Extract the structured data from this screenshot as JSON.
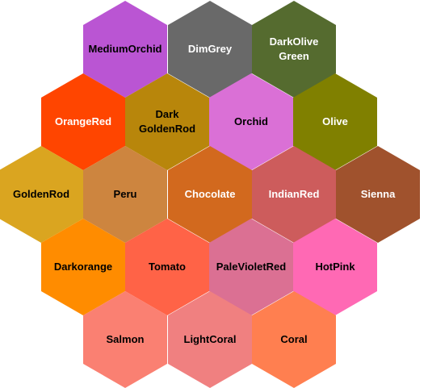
{
  "hexagons": [
    {
      "name": "MediumOrchid",
      "label": "MediumOrchid",
      "color": "#BA55D3",
      "text_color": "#000000"
    },
    {
      "name": "DimGrey",
      "label": "DimGrey",
      "color": "#696969",
      "text_color": "#FFFFFF"
    },
    {
      "name": "DarkOliveGreen",
      "label": "DarkOlive\nGreen",
      "color": "#556B2F",
      "text_color": "#FFFFFF"
    },
    {
      "name": "OrangeRed",
      "label": "OrangeRed",
      "color": "#FF4500",
      "text_color": "#FFFFFF"
    },
    {
      "name": "DarkGoldenRod",
      "label": "Dark\nGoldenRod",
      "color": "#B8860B",
      "text_color": "#000000"
    },
    {
      "name": "Orchid",
      "label": "Orchid",
      "color": "#DA70D6",
      "text_color": "#000000"
    },
    {
      "name": "Olive",
      "label": "Olive",
      "color": "#808000",
      "text_color": "#FFFFFF"
    },
    {
      "name": "GoldenRod",
      "label": "GoldenRod",
      "color": "#DAA520",
      "text_color": "#000000"
    },
    {
      "name": "Peru",
      "label": "Peru",
      "color": "#CD853F",
      "text_color": "#000000"
    },
    {
      "name": "Chocolate",
      "label": "Chocolate",
      "color": "#D2691E",
      "text_color": "#FFFFFF"
    },
    {
      "name": "IndianRed",
      "label": "IndianRed",
      "color": "#CD5C5C",
      "text_color": "#FFFFFF"
    },
    {
      "name": "Sienna",
      "label": "Sienna",
      "color": "#A0522D",
      "text_color": "#FFFFFF"
    },
    {
      "name": "Darkorange",
      "label": "Darkorange",
      "color": "#FF8C00",
      "text_color": "#000000"
    },
    {
      "name": "Tomato",
      "label": "Tomato",
      "color": "#FF6347",
      "text_color": "#000000"
    },
    {
      "name": "PaleVioletRed",
      "label": "PaleVioletRed",
      "color": "#DB7093",
      "text_color": "#000000"
    },
    {
      "name": "HotPink",
      "label": "HotPink",
      "color": "#FF69B4",
      "text_color": "#000000"
    },
    {
      "name": "Salmon",
      "label": "Salmon",
      "color": "#FA8072",
      "text_color": "#000000"
    },
    {
      "name": "LightCoral",
      "label": "LightCoral",
      "color": "#F08080",
      "text_color": "#000000"
    },
    {
      "name": "Coral",
      "label": "Coral",
      "color": "#FF7F50",
      "text_color": "#000000"
    }
  ]
}
